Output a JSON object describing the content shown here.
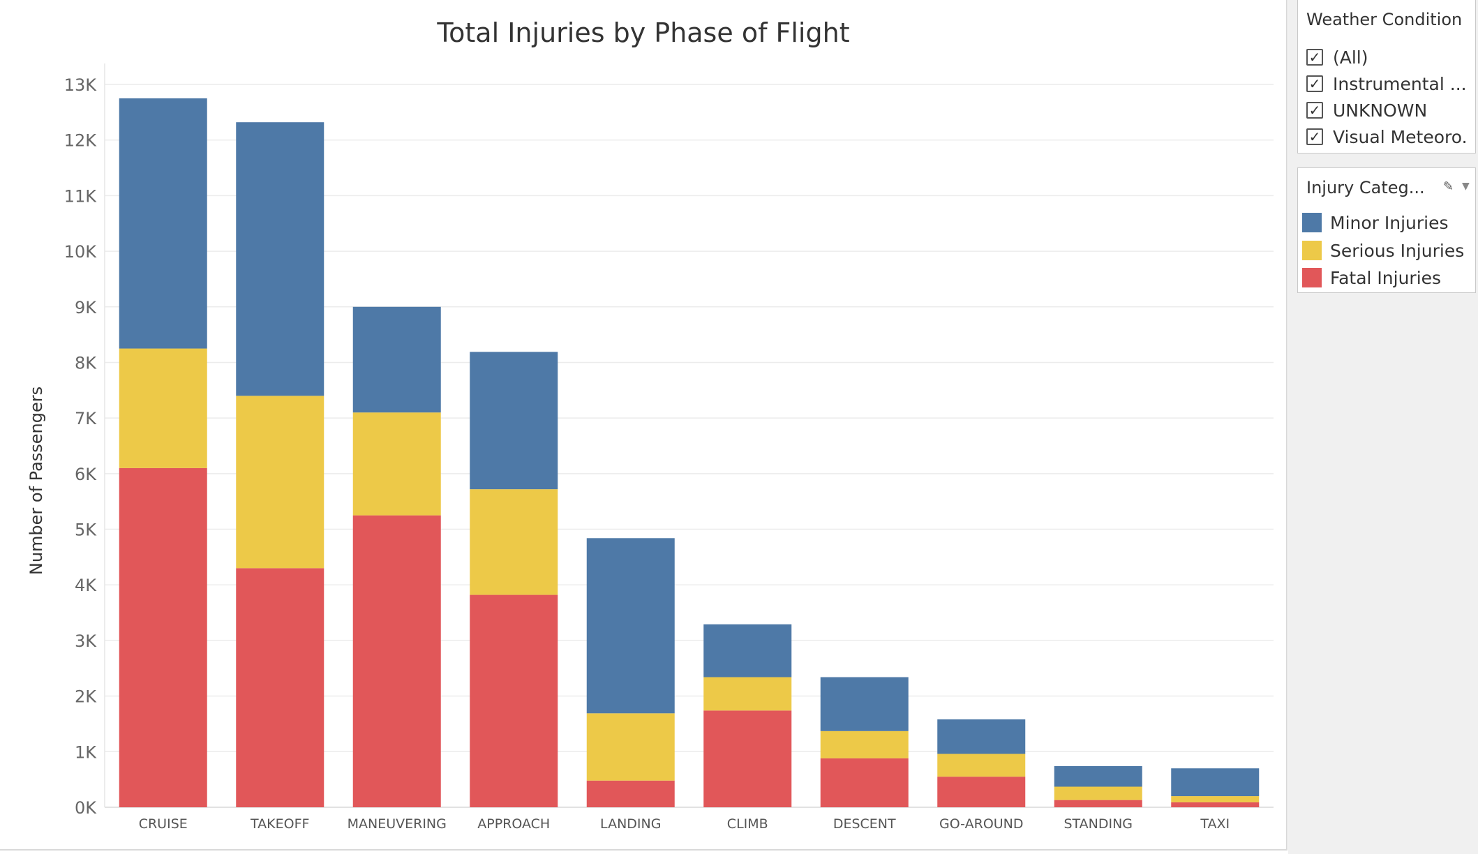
{
  "chart_data": {
    "type": "bar",
    "stacked": true,
    "title": "Total Injuries by Phase of Flight",
    "ylabel": "Number of Passengers",
    "xlabel": "",
    "ylim": [
      0,
      13000
    ],
    "y_ticks": [
      0,
      1000,
      2000,
      3000,
      4000,
      5000,
      6000,
      7000,
      8000,
      9000,
      10000,
      11000,
      12000,
      13000
    ],
    "y_tick_labels": [
      "0K",
      "1K",
      "2K",
      "3K",
      "4K",
      "5K",
      "6K",
      "7K",
      "8K",
      "9K",
      "10K",
      "11K",
      "12K",
      "13K"
    ],
    "grid": true,
    "legend_position": "right",
    "categories": [
      "CRUISE",
      "TAKEOFF",
      "MANEUVERING",
      "APPROACH",
      "LANDING",
      "CLIMB",
      "DESCENT",
      "GO-AROUND",
      "STANDING",
      "TAXI"
    ],
    "series": [
      {
        "name": "Fatal Injuries",
        "color": "#e15759",
        "values": [
          6100,
          4300,
          5250,
          3820,
          480,
          1740,
          880,
          550,
          130,
          90
        ]
      },
      {
        "name": "Serious Injuries",
        "color": "#edc948",
        "values": [
          2150,
          3100,
          1850,
          1900,
          1210,
          600,
          490,
          410,
          240,
          110
        ]
      },
      {
        "name": "Minor Injuries",
        "color": "#4e79a7",
        "values": [
          4500,
          4920,
          1900,
          2470,
          3150,
          950,
          970,
          620,
          370,
          500
        ]
      }
    ]
  },
  "filters": {
    "weather": {
      "title": "Weather Condition",
      "items": [
        {
          "label": "(All)",
          "checked": true
        },
        {
          "label": "Instrumental ...",
          "checked": true
        },
        {
          "label": "UNKNOWN",
          "checked": true
        },
        {
          "label": "Visual Meteoro...",
          "checked": true
        }
      ]
    }
  },
  "legend": {
    "title": "Injury Categ...",
    "items": [
      {
        "label": "Minor Injuries",
        "color": "#4e79a7"
      },
      {
        "label": "Serious Injuries",
        "color": "#edc948"
      },
      {
        "label": "Fatal Injuries",
        "color": "#e15759"
      }
    ]
  },
  "icons": {
    "edit": "pencil-icon",
    "menu": "dropdown-arrow-icon",
    "check": "checkmark-icon"
  }
}
